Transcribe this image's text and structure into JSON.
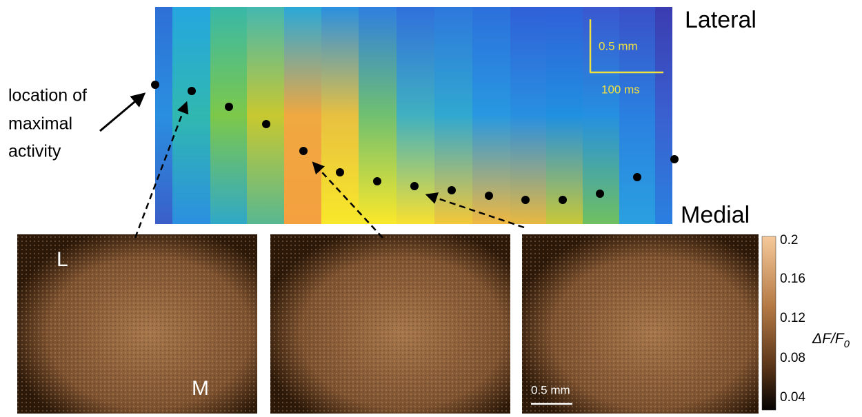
{
  "heatmap": {
    "top_label": "Lateral",
    "bottom_label": "Medial",
    "scale_distance": "0.5 mm",
    "scale_time": "100 ms"
  },
  "annotation": {
    "lines": [
      "location of",
      "maximal",
      "activity"
    ]
  },
  "panels": {
    "lateral_marker": "L",
    "medial_marker": "M",
    "scale": "0.5 mm"
  },
  "colorbar": {
    "ticks": [
      "0.2",
      "0.16",
      "0.12",
      "0.08",
      "0.04"
    ],
    "label": {
      "main": "ΔF/F",
      "sub": "0"
    }
  }
}
